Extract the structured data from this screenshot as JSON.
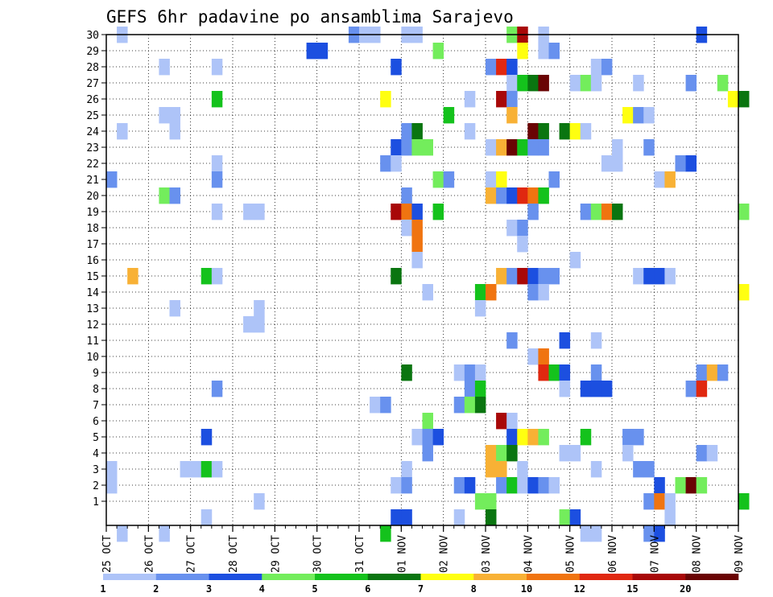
{
  "chart_data": {
    "type": "heatmap",
    "title": "GEFS 6hr padavine po ansamblima Sarajevo",
    "y_labels": [
      "1",
      "2",
      "3",
      "4",
      "5",
      "6",
      "7",
      "8",
      "9",
      "10",
      "11",
      "12",
      "13",
      "14",
      "15",
      "16",
      "17",
      "18",
      "19",
      "20",
      "21",
      "22",
      "23",
      "24",
      "25",
      "26",
      "27",
      "28",
      "29",
      "30"
    ],
    "x_labels": [
      "25 OCT",
      "26 OCT",
      "27 OCT",
      "28 OCT",
      "29 OCT",
      "30 OCT",
      "31 OCT",
      "01 NOV",
      "02 NOV",
      "03 NOV",
      "04 NOV",
      "05 NOV",
      "06 NOV",
      "07 NOV",
      "08 NOV",
      "09 NOV"
    ],
    "x_range_days": [
      0,
      15
    ],
    "steps_per_day": 4,
    "grid": true,
    "legend": {
      "placement": "bottom",
      "labels": [
        "1",
        "2",
        "3",
        "4",
        "5",
        "6",
        "7",
        "8",
        "10",
        "12",
        "15",
        "20"
      ],
      "colors": [
        "#aec4f8",
        "#6891ee",
        "#1c4fe0",
        "#73ed5c",
        "#14c21c",
        "#0a7510",
        "#ffff10",
        "#f8b135",
        "#f07410",
        "#e02810",
        "#a80808",
        "#6a0404"
      ]
    },
    "cells": [
      [
        30,
        1,
        0
      ],
      [
        30,
        23,
        1
      ],
      [
        30,
        24,
        0
      ],
      [
        30,
        25,
        0
      ],
      [
        30,
        28,
        0
      ],
      [
        30,
        29,
        0
      ],
      [
        30,
        38,
        3
      ],
      [
        30,
        39,
        10
      ],
      [
        30,
        41,
        0
      ],
      [
        30,
        56,
        2
      ],
      [
        29,
        19,
        2
      ],
      [
        29,
        20,
        2
      ],
      [
        29,
        31,
        3
      ],
      [
        29,
        39,
        6
      ],
      [
        29,
        41,
        0
      ],
      [
        29,
        42,
        1
      ],
      [
        28,
        5,
        0
      ],
      [
        28,
        10,
        0
      ],
      [
        28,
        27,
        2
      ],
      [
        28,
        36,
        1
      ],
      [
        28,
        37,
        9
      ],
      [
        28,
        38,
        2
      ],
      [
        28,
        46,
        0
      ],
      [
        28,
        47,
        1
      ],
      [
        27,
        38,
        0
      ],
      [
        27,
        39,
        4
      ],
      [
        27,
        40,
        5
      ],
      [
        27,
        41,
        11
      ],
      [
        27,
        44,
        0
      ],
      [
        27,
        45,
        3
      ],
      [
        27,
        46,
        0
      ],
      [
        27,
        50,
        0
      ],
      [
        27,
        55,
        1
      ],
      [
        27,
        58,
        3
      ],
      [
        26,
        10,
        4
      ],
      [
        26,
        26,
        6
      ],
      [
        26,
        34,
        0
      ],
      [
        26,
        37,
        10
      ],
      [
        26,
        38,
        1
      ],
      [
        26,
        59,
        6
      ],
      [
        26,
        60,
        5
      ],
      [
        25,
        5,
        0
      ],
      [
        25,
        6,
        0
      ],
      [
        25,
        32,
        4
      ],
      [
        25,
        38,
        7
      ],
      [
        25,
        49,
        6
      ],
      [
        25,
        50,
        1
      ],
      [
        25,
        51,
        0
      ],
      [
        24,
        1,
        0
      ],
      [
        24,
        6,
        0
      ],
      [
        24,
        28,
        1
      ],
      [
        24,
        29,
        5
      ],
      [
        24,
        34,
        0
      ],
      [
        24,
        40,
        11
      ],
      [
        24,
        41,
        5
      ],
      [
        24,
        43,
        5
      ],
      [
        24,
        44,
        6
      ],
      [
        24,
        45,
        0
      ],
      [
        23,
        27,
        2
      ],
      [
        23,
        28,
        1
      ],
      [
        23,
        29,
        3
      ],
      [
        23,
        30,
        3
      ],
      [
        23,
        36,
        0
      ],
      [
        23,
        37,
        7
      ],
      [
        23,
        38,
        11
      ],
      [
        23,
        39,
        4
      ],
      [
        23,
        40,
        1
      ],
      [
        23,
        41,
        1
      ],
      [
        23,
        48,
        0
      ],
      [
        23,
        51,
        1
      ],
      [
        22,
        10,
        0
      ],
      [
        22,
        26,
        1
      ],
      [
        22,
        27,
        0
      ],
      [
        22,
        47,
        0
      ],
      [
        22,
        48,
        0
      ],
      [
        22,
        54,
        1
      ],
      [
        22,
        55,
        2
      ],
      [
        21,
        0,
        1
      ],
      [
        21,
        10,
        1
      ],
      [
        21,
        31,
        3
      ],
      [
        21,
        32,
        1
      ],
      [
        21,
        36,
        0
      ],
      [
        21,
        37,
        6
      ],
      [
        21,
        42,
        1
      ],
      [
        21,
        52,
        0
      ],
      [
        21,
        53,
        7
      ],
      [
        20,
        5,
        3
      ],
      [
        20,
        6,
        1
      ],
      [
        20,
        28,
        1
      ],
      [
        20,
        36,
        7
      ],
      [
        20,
        37,
        1
      ],
      [
        20,
        38,
        2
      ],
      [
        20,
        39,
        9
      ],
      [
        20,
        40,
        8
      ],
      [
        20,
        41,
        4
      ],
      [
        19,
        10,
        0
      ],
      [
        19,
        13,
        0
      ],
      [
        19,
        14,
        0
      ],
      [
        19,
        27,
        10
      ],
      [
        19,
        28,
        8
      ],
      [
        19,
        29,
        2
      ],
      [
        19,
        31,
        4
      ],
      [
        19,
        40,
        1
      ],
      [
        19,
        45,
        1
      ],
      [
        19,
        46,
        3
      ],
      [
        19,
        47,
        8
      ],
      [
        19,
        48,
        5
      ],
      [
        19,
        60,
        3
      ],
      [
        18,
        28,
        0
      ],
      [
        18,
        29,
        8
      ],
      [
        18,
        38,
        0
      ],
      [
        18,
        39,
        1
      ],
      [
        17,
        29,
        8
      ],
      [
        17,
        39,
        0
      ],
      [
        16,
        29,
        0
      ],
      [
        16,
        44,
        0
      ],
      [
        15,
        2,
        7
      ],
      [
        15,
        9,
        4
      ],
      [
        15,
        10,
        0
      ],
      [
        15,
        27,
        5
      ],
      [
        15,
        37,
        7
      ],
      [
        15,
        38,
        1
      ],
      [
        15,
        39,
        10
      ],
      [
        15,
        40,
        2
      ],
      [
        15,
        41,
        1
      ],
      [
        15,
        42,
        1
      ],
      [
        15,
        50,
        0
      ],
      [
        15,
        51,
        2
      ],
      [
        15,
        52,
        2
      ],
      [
        15,
        53,
        0
      ],
      [
        14,
        30,
        0
      ],
      [
        14,
        35,
        4
      ],
      [
        14,
        36,
        8
      ],
      [
        14,
        40,
        1
      ],
      [
        14,
        41,
        0
      ],
      [
        14,
        60,
        6
      ],
      [
        13,
        6,
        0
      ],
      [
        13,
        14,
        0
      ],
      [
        13,
        35,
        0
      ],
      [
        12,
        13,
        0
      ],
      [
        12,
        14,
        0
      ],
      [
        11,
        38,
        1
      ],
      [
        11,
        43,
        2
      ],
      [
        11,
        46,
        0
      ],
      [
        10,
        40,
        0
      ],
      [
        10,
        41,
        8
      ],
      [
        9,
        28,
        5
      ],
      [
        9,
        33,
        0
      ],
      [
        9,
        34,
        1
      ],
      [
        9,
        35,
        0
      ],
      [
        9,
        41,
        9
      ],
      [
        9,
        42,
        4
      ],
      [
        9,
        43,
        2
      ],
      [
        9,
        46,
        1
      ],
      [
        9,
        56,
        1
      ],
      [
        9,
        57,
        7
      ],
      [
        9,
        58,
        1
      ],
      [
        8,
        10,
        1
      ],
      [
        8,
        34,
        1
      ],
      [
        8,
        35,
        4
      ],
      [
        8,
        43,
        0
      ],
      [
        8,
        45,
        2
      ],
      [
        8,
        46,
        2
      ],
      [
        8,
        47,
        2
      ],
      [
        8,
        55,
        1
      ],
      [
        8,
        56,
        9
      ],
      [
        7,
        25,
        0
      ],
      [
        7,
        26,
        1
      ],
      [
        7,
        33,
        1
      ],
      [
        7,
        34,
        3
      ],
      [
        7,
        35,
        5
      ],
      [
        6,
        30,
        3
      ],
      [
        6,
        37,
        10
      ],
      [
        6,
        38,
        0
      ],
      [
        5,
        9,
        2
      ],
      [
        5,
        29,
        0
      ],
      [
        5,
        30,
        1
      ],
      [
        5,
        31,
        2
      ],
      [
        5,
        38,
        2
      ],
      [
        5,
        39,
        6
      ],
      [
        5,
        40,
        7
      ],
      [
        5,
        41,
        3
      ],
      [
        5,
        45,
        4
      ],
      [
        5,
        49,
        1
      ],
      [
        5,
        50,
        1
      ],
      [
        4,
        30,
        1
      ],
      [
        4,
        36,
        7
      ],
      [
        4,
        37,
        3
      ],
      [
        4,
        38,
        5
      ],
      [
        4,
        43,
        0
      ],
      [
        4,
        44,
        0
      ],
      [
        4,
        49,
        0
      ],
      [
        4,
        56,
        1
      ],
      [
        4,
        57,
        0
      ],
      [
        3,
        0,
        0
      ],
      [
        3,
        7,
        0
      ],
      [
        3,
        8,
        0
      ],
      [
        3,
        9,
        4
      ],
      [
        3,
        10,
        0
      ],
      [
        3,
        28,
        0
      ],
      [
        3,
        36,
        7
      ],
      [
        3,
        37,
        7
      ],
      [
        3,
        39,
        0
      ],
      [
        3,
        46,
        0
      ],
      [
        3,
        50,
        1
      ],
      [
        3,
        51,
        1
      ],
      [
        2,
        0,
        0
      ],
      [
        2,
        27,
        0
      ],
      [
        2,
        28,
        1
      ],
      [
        2,
        33,
        1
      ],
      [
        2,
        34,
        2
      ],
      [
        2,
        37,
        1
      ],
      [
        2,
        38,
        4
      ],
      [
        2,
        39,
        0
      ],
      [
        2,
        40,
        2
      ],
      [
        2,
        41,
        1
      ],
      [
        2,
        42,
        0
      ],
      [
        2,
        52,
        2
      ],
      [
        2,
        54,
        3
      ],
      [
        2,
        55,
        11
      ],
      [
        2,
        56,
        3
      ],
      [
        1,
        14,
        0
      ],
      [
        1,
        35,
        3
      ],
      [
        1,
        36,
        3
      ],
      [
        1,
        51,
        1
      ],
      [
        1,
        52,
        8
      ],
      [
        1,
        53,
        0
      ],
      [
        1,
        60,
        4
      ],
      [
        0,
        9,
        0
      ],
      [
        0,
        27,
        2
      ],
      [
        0,
        28,
        2
      ],
      [
        0,
        33,
        0
      ],
      [
        0,
        36,
        5
      ],
      [
        0,
        43,
        3
      ],
      [
        0,
        44,
        2
      ],
      [
        0,
        53,
        0
      ],
      [
        -1,
        1,
        0
      ],
      [
        -1,
        5,
        0
      ],
      [
        -1,
        26,
        4
      ],
      [
        -1,
        45,
        0
      ],
      [
        -1,
        46,
        0
      ],
      [
        -1,
        51,
        1
      ],
      [
        -1,
        52,
        2
      ]
    ]
  }
}
